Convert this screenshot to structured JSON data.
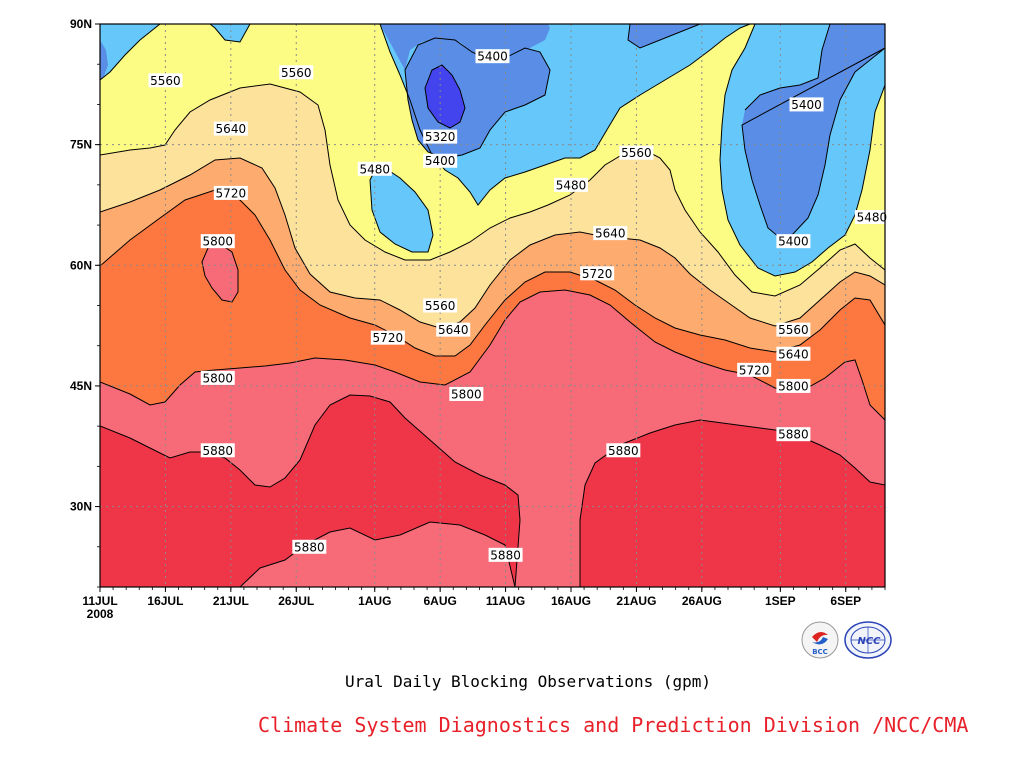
{
  "chart_data": {
    "type": "contour",
    "title": "Ural Daily Blocking Observations (gpm)",
    "units": "gpm",
    "x_axis": {
      "range": [
        "11JUL2008",
        "9SEP2008"
      ],
      "ticks": [
        "11JUL",
        "16JUL",
        "21JUL",
        "26JUL",
        "1AUG",
        "6AUG",
        "11AUG",
        "16AUG",
        "21AUG",
        "26AUG",
        "1SEP",
        "6SEP"
      ],
      "year_label": "2008"
    },
    "y_axis": {
      "range": [
        20,
        90
      ],
      "ticks": [
        "30N",
        "45N",
        "60N",
        "75N",
        "90N"
      ]
    },
    "grid": true,
    "levels": [
      5320,
      5400,
      5480,
      5560,
      5640,
      5720,
      5800,
      5880
    ],
    "contour_labels": [
      {
        "text": "5560",
        "date": "16JUL",
        "lat": 83
      },
      {
        "text": "5560",
        "date": "26JUL",
        "lat": 84
      },
      {
        "text": "5400",
        "date": "10AUG",
        "lat": 86
      },
      {
        "text": "5400",
        "date": "3SEP",
        "lat": 80
      },
      {
        "text": "5640",
        "date": "21JUL",
        "lat": 77
      },
      {
        "text": "5320",
        "date": "6AUG",
        "lat": 76
      },
      {
        "text": "5400",
        "date": "6AUG",
        "lat": 73
      },
      {
        "text": "5480",
        "date": "1AUG",
        "lat": 72
      },
      {
        "text": "5560",
        "date": "21AUG",
        "lat": 74
      },
      {
        "text": "5720",
        "date": "21JUL",
        "lat": 69
      },
      {
        "text": "5480",
        "date": "16AUG",
        "lat": 70
      },
      {
        "text": "5480",
        "date": "8SEP",
        "lat": 66
      },
      {
        "text": "5800",
        "date": "20JUL",
        "lat": 63
      },
      {
        "text": "5640",
        "date": "19AUG",
        "lat": 64
      },
      {
        "text": "5400",
        "date": "2SEP",
        "lat": 63
      },
      {
        "text": "5720",
        "date": "18AUG",
        "lat": 59
      },
      {
        "text": "5560",
        "date": "6AUG",
        "lat": 55
      },
      {
        "text": "5560",
        "date": "2SEP",
        "lat": 52
      },
      {
        "text": "5640",
        "date": "7AUG",
        "lat": 52
      },
      {
        "text": "5720",
        "date": "2AUG",
        "lat": 51
      },
      {
        "text": "5640",
        "date": "2SEP",
        "lat": 49
      },
      {
        "text": "5720",
        "date": "30AUG",
        "lat": 47
      },
      {
        "text": "5800",
        "date": "20JUL",
        "lat": 46
      },
      {
        "text": "5800",
        "date": "2SEP",
        "lat": 45
      },
      {
        "text": "5800",
        "date": "8AUG",
        "lat": 44
      },
      {
        "text": "5880",
        "date": "2SEP",
        "lat": 39
      },
      {
        "text": "5880",
        "date": "20JUL",
        "lat": 37
      },
      {
        "text": "5880",
        "date": "20AUG",
        "lat": 37
      },
      {
        "text": "5880",
        "date": "27JUL",
        "lat": 25
      },
      {
        "text": "5880",
        "date": "11AUG",
        "lat": 24
      }
    ],
    "fill_colors": {
      "below_5320": "#4444ee",
      "5320_5400": "#5a8ee6",
      "5400_5480": "#66c8fa",
      "5480_5560": "#fcfc84",
      "5560_5640": "#fde29c",
      "5640_5720": "#fdab6e",
      "5720_5800": "#fc7840",
      "5800_5880": "#f66b77",
      "above_5880": "#ef3649"
    }
  },
  "caption": {
    "title": "Ural Daily Blocking Observations (gpm)",
    "credit": "Climate System Diagnostics and Prediction Division /NCC/CMA"
  },
  "logos": {
    "left": {
      "icon": "bcc-logo",
      "text": "BCC"
    },
    "right": {
      "icon": "ncc-logo",
      "text": "NCC"
    }
  }
}
